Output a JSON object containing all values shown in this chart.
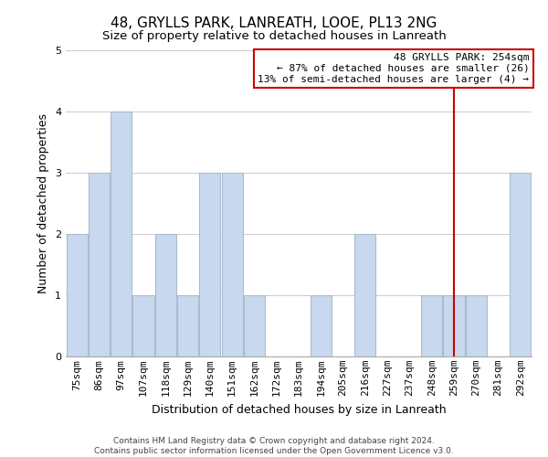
{
  "title": "48, GRYLLS PARK, LANREATH, LOOE, PL13 2NG",
  "subtitle": "Size of property relative to detached houses in Lanreath",
  "xlabel": "Distribution of detached houses by size in Lanreath",
  "ylabel": "Number of detached properties",
  "categories": [
    "75sqm",
    "86sqm",
    "97sqm",
    "107sqm",
    "118sqm",
    "129sqm",
    "140sqm",
    "151sqm",
    "162sqm",
    "172sqm",
    "183sqm",
    "194sqm",
    "205sqm",
    "216sqm",
    "227sqm",
    "237sqm",
    "248sqm",
    "259sqm",
    "270sqm",
    "281sqm",
    "292sqm"
  ],
  "values": [
    2,
    3,
    4,
    1,
    2,
    1,
    3,
    3,
    1,
    0,
    0,
    1,
    0,
    2,
    0,
    0,
    1,
    1,
    1,
    0,
    3
  ],
  "bar_color": "#c8d8ee",
  "bar_edge_color": "#aabbd0",
  "vline_x_index": 17,
  "vline_color": "#cc0000",
  "annotation_text": "48 GRYLLS PARK: 254sqm\n← 87% of detached houses are smaller (26)\n13% of semi-detached houses are larger (4) →",
  "annotation_box_edgecolor": "#cc0000",
  "annotation_box_facecolor": "#ffffff",
  "ylim": [
    0,
    5
  ],
  "yticks": [
    0,
    1,
    2,
    3,
    4,
    5
  ],
  "footer_line1": "Contains HM Land Registry data © Crown copyright and database right 2024.",
  "footer_line2": "Contains public sector information licensed under the Open Government Licence v3.0.",
  "background_color": "#ffffff",
  "grid_color": "#cccccc",
  "title_fontsize": 11,
  "subtitle_fontsize": 9.5,
  "xlabel_fontsize": 9,
  "ylabel_fontsize": 9,
  "tick_fontsize": 8,
  "footer_fontsize": 6.5
}
